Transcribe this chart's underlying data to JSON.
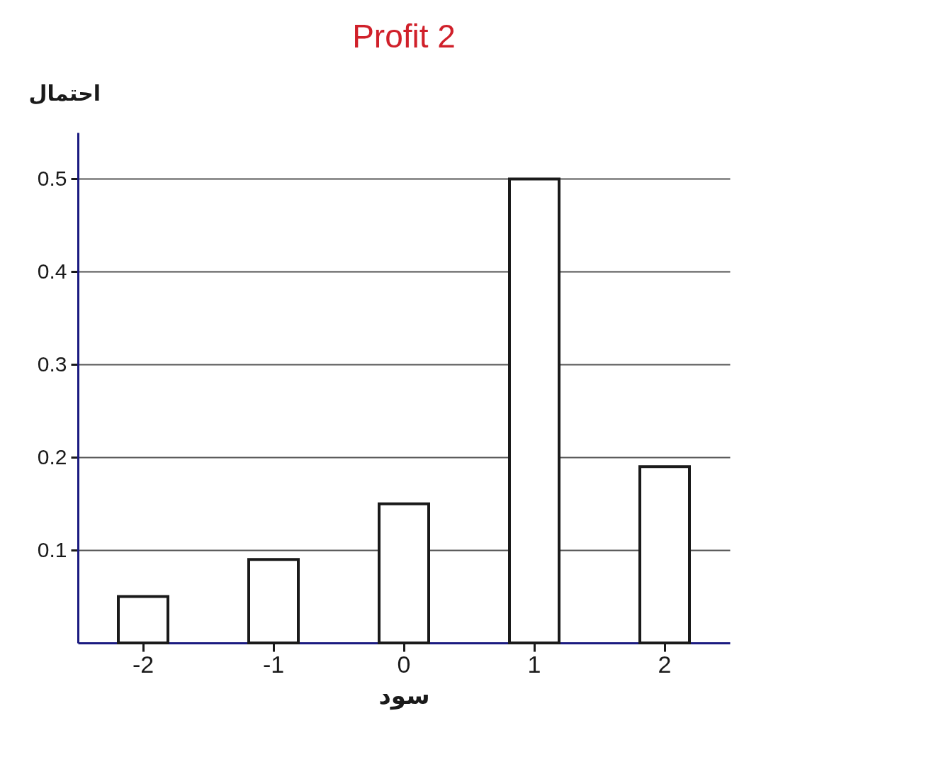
{
  "chart_data": {
    "type": "bar",
    "title": "Profit 2",
    "xlabel": "سود",
    "ylabel": "احتمال",
    "categories": [
      "-2",
      "-1",
      "0",
      "1",
      "2"
    ],
    "values": [
      0.05,
      0.09,
      0.15,
      0.5,
      0.19
    ],
    "color": "#1a1a1a",
    "ylim": [
      0,
      0.55
    ],
    "yticks": [
      0.1,
      0.2,
      0.3,
      0.4,
      0.5
    ],
    "grid": "y"
  }
}
